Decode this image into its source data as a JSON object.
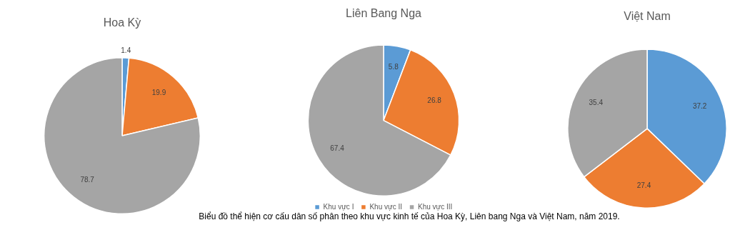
{
  "chart_data": [
    {
      "type": "pie",
      "title": "Hoa Kỳ",
      "categories": [
        null,
        null,
        null
      ],
      "values": [
        1.4,
        19.9,
        78.7
      ],
      "colors": [
        "#5b9bd5",
        "#ed7d31",
        "#a5a5a5"
      ],
      "data_labels": true,
      "legend": false
    },
    {
      "type": "pie",
      "title": "Liên Bang Nga",
      "categories": [
        "Khu vực I",
        "Khu vực II",
        "Khu vực III"
      ],
      "values": [
        5.8,
        26.8,
        67.4
      ],
      "colors": [
        "#5b9bd5",
        "#ed7d31",
        "#a5a5a5"
      ],
      "data_labels": true,
      "legend": "bottom",
      "annotations": [
        "Biểu đồ thể hiện cơ cấu dân số phân theo khu vực kinh tế của Hoa Kỳ, Liên bang Nga và Việt Nam, năm 2019."
      ]
    },
    {
      "type": "pie",
      "title": "Việt Nam",
      "categories": [
        null,
        null,
        null
      ],
      "values": [
        37.2,
        27.4,
        35.4
      ],
      "colors": [
        "#5b9bd5",
        "#ed7d31",
        "#a5a5a5"
      ],
      "data_labels": true,
      "legend": false
    }
  ]
}
